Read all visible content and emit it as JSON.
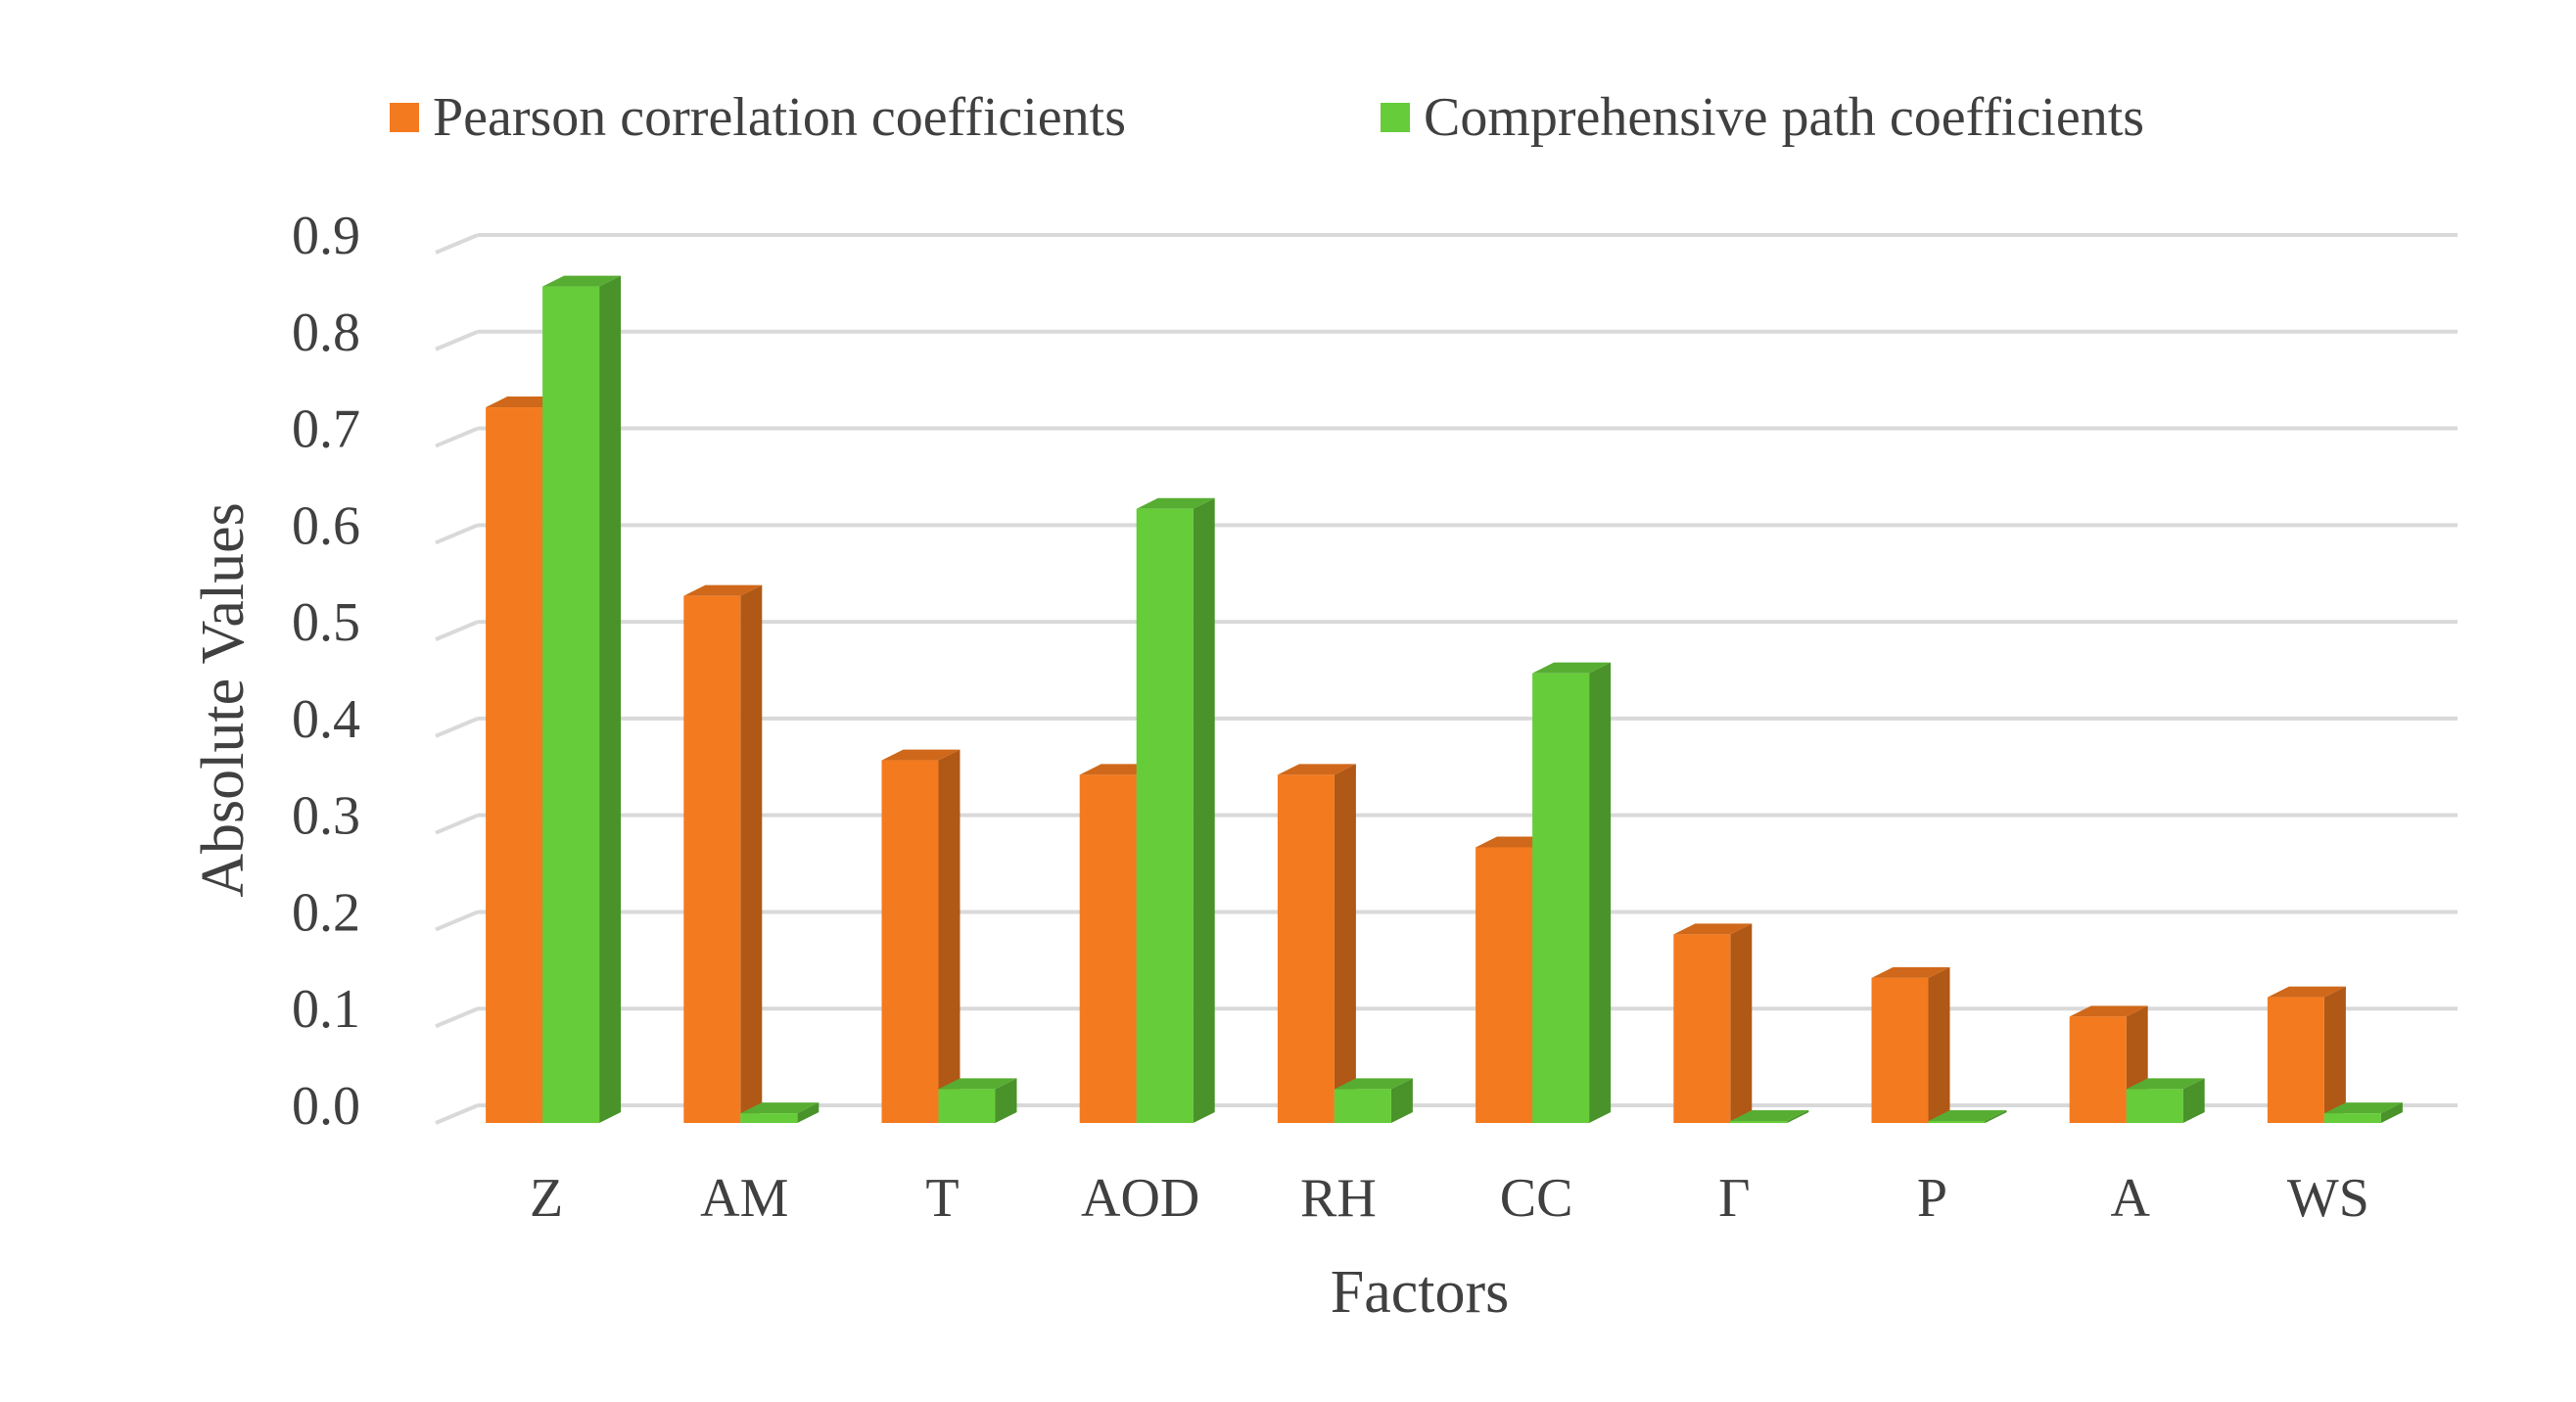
{
  "chart_data": {
    "type": "bar",
    "style": "3d-clustered-column",
    "title": "",
    "xlabel": "Factors",
    "ylabel": "Absolute Values",
    "ylim": [
      0,
      0.9
    ],
    "yticks": [
      "0.0",
      "0.1",
      "0.2",
      "0.3",
      "0.4",
      "0.5",
      "0.6",
      "0.7",
      "0.8",
      "0.9"
    ],
    "grid": true,
    "legend_position": "top",
    "categories": [
      "Z",
      "AM",
      "T",
      "AOD",
      "RH",
      "CC",
      "Γ",
      "P",
      "A",
      "WS"
    ],
    "series": [
      {
        "name": "Pearson correlation coefficients",
        "color": "#F47A1F",
        "values": [
          0.74,
          0.545,
          0.375,
          0.36,
          0.36,
          0.285,
          0.195,
          0.15,
          0.11,
          0.13
        ]
      },
      {
        "name": "Comprehensive path coefficients",
        "color": "#66CC3A",
        "values": [
          0.865,
          0.01,
          0.035,
          0.635,
          0.035,
          0.465,
          0.002,
          0.002,
          0.035,
          0.01
        ]
      }
    ]
  }
}
